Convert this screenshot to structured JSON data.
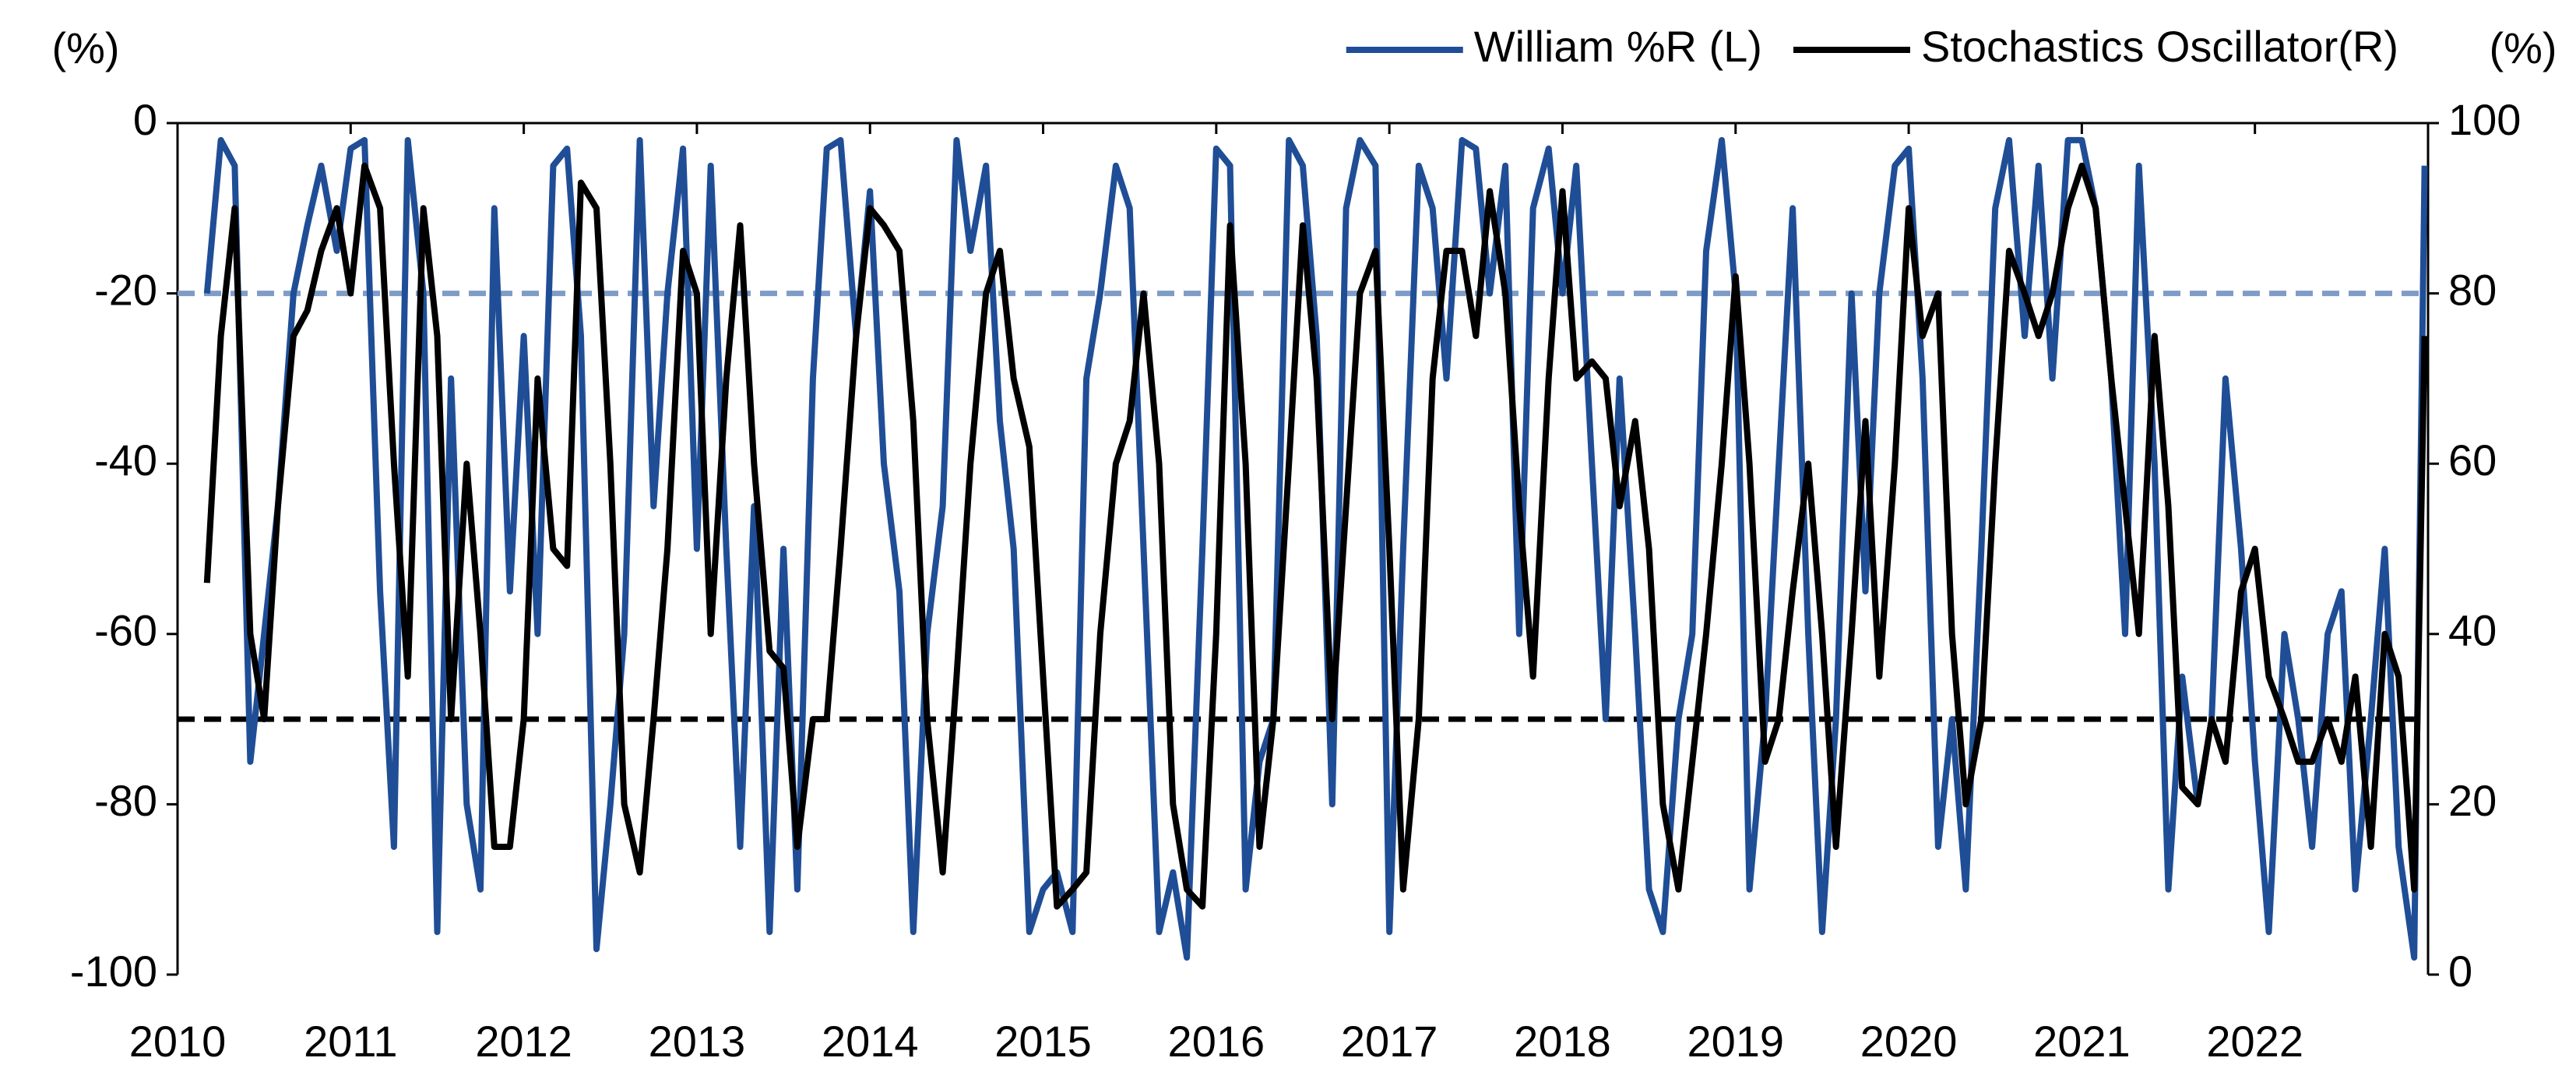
{
  "chart_data": {
    "type": "line",
    "y_label": "(%)",
    "y2_label": "(%)",
    "xlim": [
      2010,
      2023
    ],
    "xticks": [
      2010,
      2011,
      2012,
      2013,
      2014,
      2015,
      2016,
      2017,
      2018,
      2019,
      2020,
      2021,
      2022
    ],
    "ylim": [
      -100,
      0
    ],
    "yticks": [
      0,
      -20,
      -40,
      -60,
      -80,
      -100
    ],
    "y2lim": [
      0,
      100
    ],
    "y2ticks": [
      100,
      80,
      60,
      40,
      20,
      0
    ],
    "legend": "top-right",
    "hlines": [
      {
        "value": -20,
        "axis": "y",
        "color": "#7f9cc8"
      },
      {
        "value": 30,
        "axis": "y2",
        "color": "#000000"
      }
    ],
    "x": [
      2010.17,
      2010.25,
      2010.33,
      2010.42,
      2010.5,
      2010.58,
      2010.67,
      2010.75,
      2010.83,
      2010.92,
      2011.0,
      2011.08,
      2011.17,
      2011.25,
      2011.33,
      2011.42,
      2011.5,
      2011.58,
      2011.67,
      2011.75,
      2011.83,
      2011.92,
      2012.0,
      2012.08,
      2012.17,
      2012.25,
      2012.33,
      2012.42,
      2012.5,
      2012.58,
      2012.67,
      2012.75,
      2012.83,
      2012.92,
      2013.0,
      2013.08,
      2013.17,
      2013.25,
      2013.33,
      2013.42,
      2013.5,
      2013.58,
      2013.67,
      2013.75,
      2013.83,
      2013.92,
      2014.0,
      2014.08,
      2014.17,
      2014.25,
      2014.33,
      2014.42,
      2014.5,
      2014.58,
      2014.67,
      2014.75,
      2014.83,
      2014.92,
      2015.0,
      2015.08,
      2015.17,
      2015.25,
      2015.33,
      2015.42,
      2015.5,
      2015.58,
      2015.67,
      2015.75,
      2015.83,
      2015.92,
      2016.0,
      2016.08,
      2016.17,
      2016.25,
      2016.33,
      2016.42,
      2016.5,
      2016.58,
      2016.67,
      2016.75,
      2016.83,
      2016.92,
      2017.0,
      2017.08,
      2017.17,
      2017.25,
      2017.33,
      2017.42,
      2017.5,
      2017.58,
      2017.67,
      2017.75,
      2017.83,
      2017.92,
      2018.0,
      2018.08,
      2018.17,
      2018.25,
      2018.33,
      2018.42,
      2018.5,
      2018.58,
      2018.67,
      2018.75,
      2018.83,
      2018.92,
      2019.0,
      2019.08,
      2019.17,
      2019.25,
      2019.33,
      2019.42,
      2019.5,
      2019.58,
      2019.67,
      2019.75,
      2019.83,
      2019.92,
      2020.0,
      2020.08,
      2020.17,
      2020.25,
      2020.33,
      2020.42,
      2020.5,
      2020.58,
      2020.67,
      2020.75,
      2020.83,
      2020.92,
      2021.0,
      2021.08,
      2021.17,
      2021.25,
      2021.33,
      2021.42,
      2021.5,
      2021.58,
      2021.67,
      2021.75,
      2021.83,
      2021.92,
      2022.0,
      2022.08,
      2022.17,
      2022.25,
      2022.33,
      2022.42,
      2022.5,
      2022.58,
      2022.67,
      2022.75,
      2022.83,
      2022.92,
      2022.98
    ],
    "series": [
      {
        "name": "William %R (L)",
        "color": "#1f4e96",
        "axis": "y",
        "values": [
          -20,
          -2,
          -5,
          -75,
          -60,
          -45,
          -20,
          -12,
          -5,
          -15,
          -3,
          -2,
          -55,
          -85,
          -2,
          -20,
          -95,
          -30,
          -80,
          -90,
          -10,
          -55,
          -25,
          -60,
          -5,
          -3,
          -25,
          -97,
          -80,
          -60,
          -2,
          -45,
          -20,
          -3,
          -50,
          -5,
          -50,
          -85,
          -45,
          -95,
          -50,
          -90,
          -30,
          -3,
          -2,
          -25,
          -8,
          -40,
          -55,
          -95,
          -60,
          -45,
          -2,
          -15,
          -5,
          -35,
          -50,
          -95,
          -90,
          -88,
          -95,
          -30,
          -20,
          -5,
          -10,
          -50,
          -95,
          -88,
          -98,
          -50,
          -3,
          -5,
          -90,
          -75,
          -70,
          -2,
          -5,
          -25,
          -80,
          -10,
          -2,
          -5,
          -95,
          -50,
          -5,
          -10,
          -30,
          -2,
          -3,
          -20,
          -5,
          -60,
          -10,
          -3,
          -20,
          -5,
          -40,
          -70,
          -30,
          -60,
          -90,
          -95,
          -70,
          -60,
          -15,
          -2,
          -20,
          -90,
          -70,
          -40,
          -10,
          -60,
          -95,
          -70,
          -20,
          -55,
          -20,
          -5,
          -3,
          -30,
          -85,
          -70,
          -90,
          -50,
          -10,
          -2,
          -25,
          -5,
          -30,
          -2,
          -2,
          -10,
          -30,
          -60,
          -5,
          -40,
          -90,
          -65,
          -80,
          -70,
          -30,
          -50,
          -75,
          -95,
          -60,
          -70,
          -85,
          -60,
          -55,
          -90,
          -70,
          -50,
          -85,
          -98,
          -5
        ]
      },
      {
        "name": "Stochastics Oscillator(R)",
        "color": "#000000",
        "axis": "y2",
        "values": [
          46,
          75,
          90,
          40,
          30,
          55,
          75,
          78,
          85,
          90,
          80,
          95,
          90,
          60,
          35,
          90,
          75,
          30,
          60,
          40,
          15,
          15,
          30,
          70,
          50,
          48,
          93,
          90,
          60,
          20,
          12,
          30,
          50,
          85,
          80,
          40,
          70,
          88,
          60,
          38,
          36,
          15,
          30,
          30,
          50,
          75,
          90,
          88,
          85,
          65,
          30,
          12,
          35,
          60,
          80,
          85,
          70,
          62,
          35,
          8,
          10,
          12,
          40,
          60,
          65,
          80,
          60,
          20,
          10,
          8,
          40,
          88,
          60,
          15,
          30,
          60,
          88,
          70,
          30,
          55,
          80,
          85,
          50,
          10,
          30,
          70,
          85,
          85,
          75,
          92,
          80,
          55,
          35,
          70,
          92,
          70,
          72,
          70,
          55,
          65,
          50,
          20,
          10,
          25,
          40,
          60,
          82,
          60,
          25,
          30,
          45,
          60,
          40,
          15,
          40,
          65,
          35,
          60,
          90,
          75,
          80,
          40,
          20,
          30,
          60,
          85,
          80,
          75,
          80,
          90,
          95,
          90,
          70,
          55,
          40,
          75,
          55,
          22,
          20,
          30,
          25,
          45,
          50,
          35,
          30,
          25,
          25,
          30,
          25,
          35,
          15,
          40,
          35,
          10,
          75
        ]
      }
    ]
  }
}
